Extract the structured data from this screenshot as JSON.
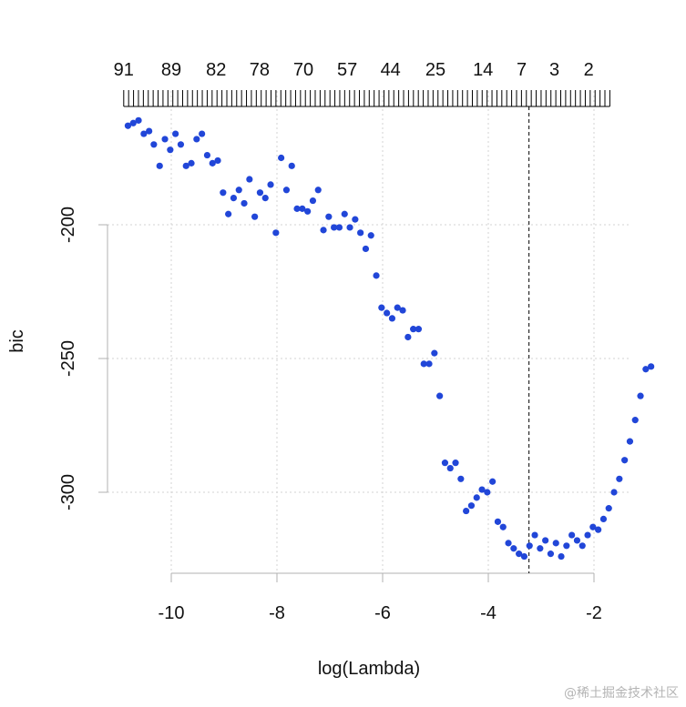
{
  "chart_data": {
    "type": "scatter",
    "xlabel": "log(Lambda)",
    "ylabel": "bic",
    "xlim": [
      -10.8,
      -1.6
    ],
    "ylim": [
      -331,
      -159
    ],
    "x_ticks": [
      -10,
      -8,
      -6,
      -4,
      -2
    ],
    "y_ticks": [
      -200,
      -250,
      -300
    ],
    "grid": true,
    "point_color": "#2146D8",
    "vline": {
      "x": -3.23,
      "style": "dashed",
      "color": "#000000"
    },
    "top_axis_labels": [
      {
        "x": -10.9,
        "label": "91"
      },
      {
        "x": -10.0,
        "label": "89"
      },
      {
        "x": -9.15,
        "label": "82"
      },
      {
        "x": -8.33,
        "label": "78"
      },
      {
        "x": -7.5,
        "label": "70"
      },
      {
        "x": -6.67,
        "label": "57"
      },
      {
        "x": -5.85,
        "label": "44"
      },
      {
        "x": -5.0,
        "label": "25"
      },
      {
        "x": -4.1,
        "label": "14"
      },
      {
        "x": -3.37,
        "label": "7"
      },
      {
        "x": -2.75,
        "label": "3"
      },
      {
        "x": -2.1,
        "label": "2"
      }
    ],
    "top_tick_range": [
      -10.9,
      -1.7
    ],
    "top_tick_count": 100,
    "points": [
      [
        -10.82,
        -163
      ],
      [
        -10.72,
        -162
      ],
      [
        -10.62,
        -161
      ],
      [
        -10.52,
        -166
      ],
      [
        -10.42,
        -165
      ],
      [
        -10.33,
        -170
      ],
      [
        -10.22,
        -178
      ],
      [
        -10.12,
        -168
      ],
      [
        -10.02,
        -172
      ],
      [
        -9.92,
        -166
      ],
      [
        -9.82,
        -170
      ],
      [
        -9.72,
        -178
      ],
      [
        -9.62,
        -177
      ],
      [
        -9.52,
        -168
      ],
      [
        -9.42,
        -166
      ],
      [
        -9.32,
        -174
      ],
      [
        -9.22,
        -177
      ],
      [
        -9.12,
        -176
      ],
      [
        -9.02,
        -188
      ],
      [
        -8.92,
        -196
      ],
      [
        -8.82,
        -190
      ],
      [
        -8.72,
        -187
      ],
      [
        -8.62,
        -192
      ],
      [
        -8.52,
        -183
      ],
      [
        -8.42,
        -197
      ],
      [
        -8.32,
        -188
      ],
      [
        -8.22,
        -190
      ],
      [
        -8.12,
        -185
      ],
      [
        -8.02,
        -203
      ],
      [
        -7.92,
        -175
      ],
      [
        -7.82,
        -187
      ],
      [
        -7.72,
        -178
      ],
      [
        -7.62,
        -194
      ],
      [
        -7.52,
        -194
      ],
      [
        -7.42,
        -195
      ],
      [
        -7.32,
        -191
      ],
      [
        -7.22,
        -187
      ],
      [
        -7.12,
        -202
      ],
      [
        -7.02,
        -197
      ],
      [
        -6.92,
        -201
      ],
      [
        -6.82,
        -201
      ],
      [
        -6.72,
        -196
      ],
      [
        -6.62,
        -201
      ],
      [
        -6.52,
        -198
      ],
      [
        -6.42,
        -203
      ],
      [
        -6.32,
        -209
      ],
      [
        -6.22,
        -204
      ],
      [
        -6.12,
        -219
      ],
      [
        -6.02,
        -231
      ],
      [
        -5.92,
        -233
      ],
      [
        -5.82,
        -235
      ],
      [
        -5.72,
        -231
      ],
      [
        -5.62,
        -232
      ],
      [
        -5.52,
        -242
      ],
      [
        -5.42,
        -239
      ],
      [
        -5.32,
        -239
      ],
      [
        -5.22,
        -252
      ],
      [
        -5.12,
        -252
      ],
      [
        -5.02,
        -248
      ],
      [
        -4.92,
        -264
      ],
      [
        -4.82,
        -289
      ],
      [
        -4.72,
        -291
      ],
      [
        -4.62,
        -289
      ],
      [
        -4.52,
        -295
      ],
      [
        -4.42,
        -307
      ],
      [
        -4.32,
        -305
      ],
      [
        -4.22,
        -302
      ],
      [
        -4.12,
        -299
      ],
      [
        -4.02,
        -300
      ],
      [
        -3.92,
        -296
      ],
      [
        -3.82,
        -311
      ],
      [
        -3.72,
        -313
      ],
      [
        -3.62,
        -319
      ],
      [
        -3.52,
        -321
      ],
      [
        -3.42,
        -323
      ],
      [
        -3.32,
        -324
      ],
      [
        -3.22,
        -320
      ],
      [
        -3.12,
        -316
      ],
      [
        -3.02,
        -321
      ],
      [
        -2.92,
        -318
      ],
      [
        -2.82,
        -323
      ],
      [
        -2.72,
        -319
      ],
      [
        -2.62,
        -324
      ],
      [
        -2.52,
        -320
      ],
      [
        -2.42,
        -316
      ],
      [
        -2.32,
        -318
      ],
      [
        -2.22,
        -320
      ],
      [
        -2.12,
        -316
      ],
      [
        -2.02,
        -313
      ],
      [
        -1.92,
        -314
      ],
      [
        -1.82,
        -310
      ],
      [
        -1.72,
        -306
      ],
      [
        -1.62,
        -300
      ],
      [
        -1.52,
        -295
      ],
      [
        -1.42,
        -288
      ],
      [
        -1.32,
        -281
      ],
      [
        -1.22,
        -273
      ],
      [
        -1.12,
        -264
      ],
      [
        -1.02,
        -254
      ],
      [
        -0.92,
        -253
      ]
    ]
  },
  "watermark": "@稀土掘金技术社区"
}
